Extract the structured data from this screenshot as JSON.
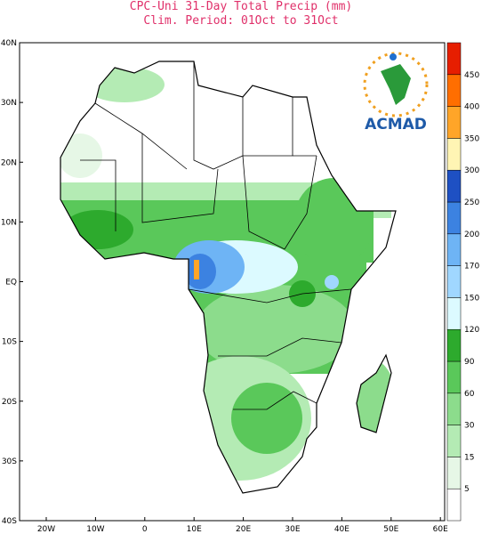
{
  "header": {
    "title": "CPC-Uni 31-Day Total Precip (mm)",
    "subtitle": "Clim. Period: 01Oct to 31Oct"
  },
  "latitude_labels": [
    "40N",
    "30N",
    "20N",
    "10N",
    "EQ",
    "10S",
    "20S",
    "30S",
    "40S"
  ],
  "longitude_labels": [
    "20W",
    "10W",
    "0",
    "10E",
    "20E",
    "30E",
    "40E",
    "50E",
    "60E"
  ],
  "colorbar": {
    "colors": [
      "#ffffff",
      "#e6f7e6",
      "#b4ebb4",
      "#8cdc8c",
      "#5ac85a",
      "#2daa2d",
      "#dcfaff",
      "#a0d7ff",
      "#6eb4f5",
      "#3c82e1",
      "#1e50c3",
      "#fff5b4",
      "#ffa528",
      "#ff6e00",
      "#e61e00"
    ],
    "labels": [
      "5",
      "15",
      "30",
      "60",
      "90",
      "120",
      "150",
      "170",
      "200",
      "250",
      "300",
      "350",
      "400",
      "450"
    ]
  },
  "logo": {
    "text": "ACMAD"
  }
}
